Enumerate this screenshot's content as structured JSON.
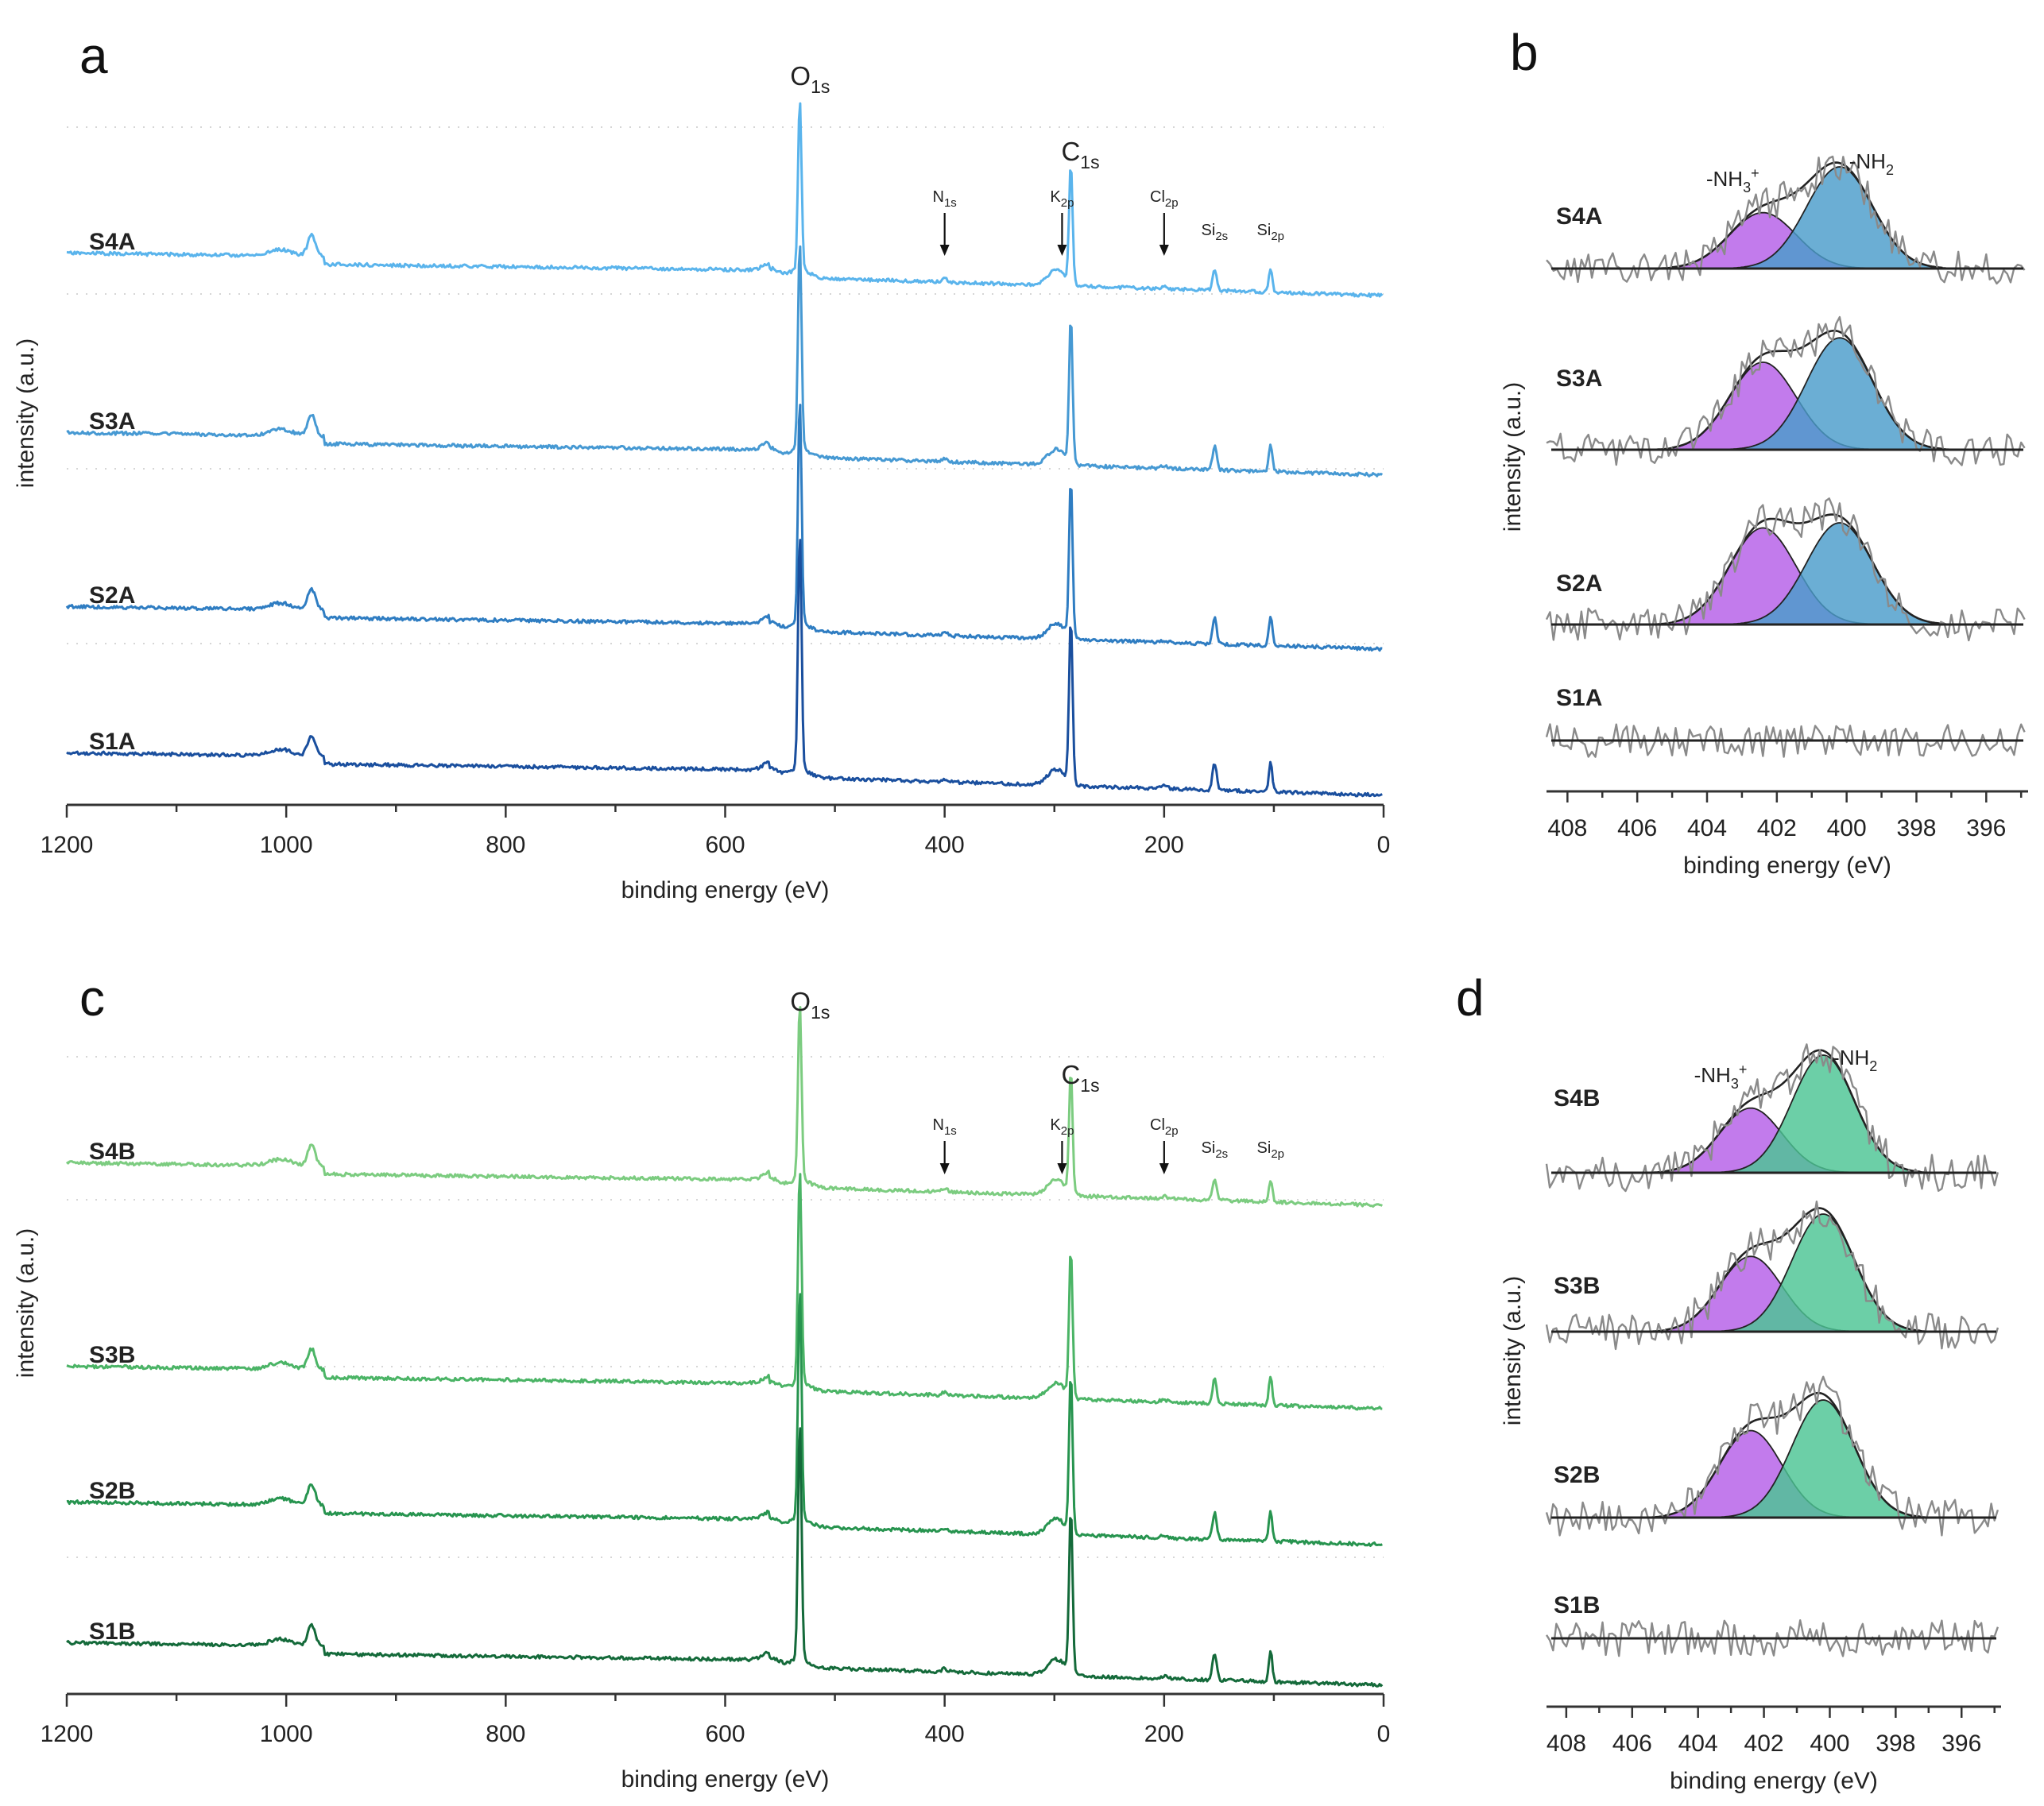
{
  "chart_data": [
    {
      "panel": "a",
      "type": "line",
      "title": "",
      "xlabel": "binding energy (eV)",
      "ylabel": "intensity (a.u.)",
      "xlim": [
        1200,
        0
      ],
      "xticks": [
        1200,
        1000,
        800,
        600,
        400,
        200,
        0
      ],
      "series": [
        {
          "name": "S4A",
          "color": "#5ab4ec",
          "offset": 3,
          "scale": 0.72
        },
        {
          "name": "S3A",
          "color": "#4699d3",
          "offset": 2,
          "scale": 0.88
        },
        {
          "name": "S2A",
          "color": "#2f7dc2",
          "offset": 1,
          "scale": 0.95
        },
        {
          "name": "S1A",
          "color": "#1a4f9e",
          "offset": 0,
          "scale": 1.0
        }
      ],
      "peaks": [
        {
          "label": "O",
          "sub": "1s",
          "x": 532,
          "arrow": false
        },
        {
          "label": "C",
          "sub": "1s",
          "x": 285,
          "arrow": false
        },
        {
          "label": "N",
          "sub": "1s",
          "x": 400,
          "arrow": true
        },
        {
          "label": "K",
          "sub": "2p",
          "x": 293,
          "arrow": true
        },
        {
          "label": "Cl",
          "sub": "2p",
          "x": 200,
          "arrow": true
        },
        {
          "label": "Si",
          "sub": "2s",
          "x": 154,
          "arrow": false
        },
        {
          "label": "Si",
          "sub": "2p",
          "x": 103,
          "arrow": false
        }
      ]
    },
    {
      "panel": "b",
      "type": "line",
      "title": "",
      "xlabel": "binding energy (eV)",
      "ylabel": "intensity (a.u.)",
      "xlim": [
        408.6,
        394.8
      ],
      "xticks": [
        408,
        406,
        404,
        402,
        400,
        398,
        396
      ],
      "components": [
        {
          "name": "-NH",
          "sub": "3",
          "sup": "+",
          "center": 402.4,
          "color": "#b45ee8"
        },
        {
          "name": "-NH",
          "sub": "2",
          "sup": "",
          "center": 400.2,
          "color": "#4a9cca"
        }
      ],
      "series": [
        {
          "name": "S4A",
          "nh3_amp": 0.55,
          "nh2_amp": 1.0
        },
        {
          "name": "S3A",
          "nh3_amp": 0.86,
          "nh2_amp": 1.1
        },
        {
          "name": "S2A",
          "nh3_amp": 0.95,
          "nh2_amp": 1.0
        },
        {
          "name": "S1A",
          "nh3_amp": 0,
          "nh2_amp": 0
        }
      ]
    },
    {
      "panel": "c",
      "type": "line",
      "title": "",
      "xlabel": "binding energy (eV)",
      "ylabel": "intensity (a.u.)",
      "xlim": [
        1200,
        0
      ],
      "xticks": [
        1200,
        1000,
        800,
        600,
        400,
        200,
        0
      ],
      "series": [
        {
          "name": "S4B",
          "color": "#7ccc80",
          "offset": 3,
          "scale": 0.74
        },
        {
          "name": "S3B",
          "color": "#4bb466",
          "offset": 2,
          "scale": 0.9
        },
        {
          "name": "S2B",
          "color": "#27944f",
          "offset": 1,
          "scale": 0.97
        },
        {
          "name": "S1B",
          "color": "#146a3a",
          "offset": 0,
          "scale": 1.0
        }
      ],
      "peaks": [
        {
          "label": "O",
          "sub": "1s",
          "x": 532,
          "arrow": false
        },
        {
          "label": "C",
          "sub": "1s",
          "x": 285,
          "arrow": false
        },
        {
          "label": "N",
          "sub": "1s",
          "x": 400,
          "arrow": true
        },
        {
          "label": "K",
          "sub": "2p",
          "x": 293,
          "arrow": true
        },
        {
          "label": "Cl",
          "sub": "2p",
          "x": 200,
          "arrow": true
        },
        {
          "label": "Si",
          "sub": "2s",
          "x": 154,
          "arrow": false
        },
        {
          "label": "Si",
          "sub": "2p",
          "x": 103,
          "arrow": false
        }
      ]
    },
    {
      "panel": "d",
      "type": "line",
      "title": "",
      "xlabel": "binding energy (eV)",
      "ylabel": "intensity (a.u.)",
      "xlim": [
        408.6,
        394.8
      ],
      "xticks": [
        408,
        406,
        404,
        402,
        400,
        398,
        396
      ],
      "components": [
        {
          "name": "-NH",
          "sub": "3",
          "sup": "+",
          "center": 402.4,
          "color": "#b45ee8"
        },
        {
          "name": "-NH",
          "sub": "2",
          "sup": "",
          "center": 400.2,
          "color": "#4cc494"
        }
      ],
      "series": [
        {
          "name": "S4B",
          "nh3_amp": 0.55,
          "nh2_amp": 1.0
        },
        {
          "name": "S3B",
          "nh3_amp": 0.64,
          "nh2_amp": 1.0
        },
        {
          "name": "S2B",
          "nh3_amp": 0.74,
          "nh2_amp": 1.0
        },
        {
          "name": "S1B",
          "nh3_amp": 0,
          "nh2_amp": 0
        }
      ]
    }
  ]
}
